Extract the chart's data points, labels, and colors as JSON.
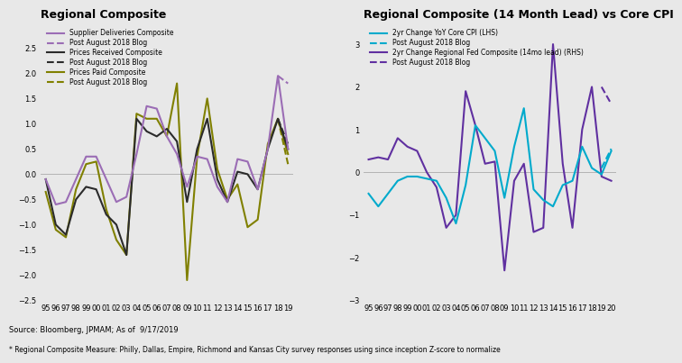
{
  "title_left": "Regional Composite",
  "title_right": "Regional Composite (14 Month Lead) vs Core CPI",
  "source_text": "Source: Bloomberg, JPMAM; As of  9/17/2019",
  "footnote_text": "* Regional Composite Measure: Philly, Dallas, Empire, Richmond and Kansas City survey responses using since inception Z-score to normalize",
  "bg_color": "#e8e8e8",
  "years_left": [
    1995,
    1996,
    1997,
    1998,
    1999,
    2000,
    2001,
    2002,
    2003,
    2004,
    2005,
    2006,
    2007,
    2008,
    2009,
    2010,
    2011,
    2012,
    2013,
    2014,
    2015,
    2016,
    2017,
    2018,
    2019
  ],
  "years_right": [
    1995,
    1996,
    1997,
    1998,
    1999,
    2000,
    2001,
    2002,
    2003,
    2004,
    2005,
    2006,
    2007,
    2008,
    2009,
    2010,
    2011,
    2012,
    2013,
    2014,
    2015,
    2016,
    2017,
    2018,
    2019,
    2020
  ],
  "supplier_deliveries": [
    -0.1,
    -0.6,
    -0.55,
    -0.1,
    0.35,
    0.35,
    -0.1,
    -0.55,
    -0.45,
    0.4,
    1.35,
    1.3,
    0.75,
    0.4,
    -0.25,
    0.35,
    0.3,
    -0.25,
    -0.55,
    0.3,
    0.25,
    -0.3,
    0.5,
    1.95,
    0.5
  ],
  "supplier_deliveries_dash": [
    null,
    null,
    null,
    null,
    null,
    null,
    null,
    null,
    null,
    null,
    null,
    null,
    null,
    null,
    null,
    null,
    null,
    null,
    null,
    null,
    null,
    null,
    null,
    1.95,
    1.8
  ],
  "prices_received": [
    -0.1,
    -1.0,
    -1.2,
    -0.5,
    -0.25,
    -0.3,
    -0.8,
    -1.0,
    -1.6,
    1.1,
    0.85,
    0.75,
    0.9,
    0.65,
    -0.55,
    0.5,
    1.1,
    -0.1,
    -0.55,
    0.05,
    0.0,
    -0.3,
    0.5,
    1.1,
    0.5
  ],
  "prices_received_dash": [
    null,
    null,
    null,
    null,
    null,
    null,
    null,
    null,
    null,
    null,
    null,
    null,
    null,
    null,
    null,
    null,
    null,
    null,
    null,
    null,
    null,
    null,
    null,
    1.1,
    0.6
  ],
  "prices_paid": [
    -0.35,
    -1.1,
    -1.25,
    -0.3,
    0.2,
    0.25,
    -0.7,
    -1.3,
    -1.6,
    1.2,
    1.1,
    1.1,
    0.75,
    1.8,
    -2.1,
    0.35,
    1.5,
    0.1,
    -0.5,
    -0.2,
    -1.05,
    -0.9,
    0.6,
    1.1,
    0.4
  ],
  "prices_paid_dash": [
    null,
    null,
    null,
    null,
    null,
    null,
    null,
    null,
    null,
    null,
    null,
    null,
    null,
    null,
    null,
    null,
    null,
    null,
    null,
    null,
    null,
    null,
    null,
    1.1,
    0.2
  ],
  "core_cpi": [
    -0.5,
    -0.8,
    -0.5,
    -0.2,
    -0.1,
    -0.1,
    -0.15,
    -0.2,
    -0.6,
    -1.2,
    -0.3,
    1.1,
    0.8,
    0.5,
    -0.6,
    0.6,
    1.5,
    -0.4,
    -0.65,
    -0.8,
    -0.3,
    -0.2,
    0.6,
    0.1,
    -0.05,
    0.5
  ],
  "core_cpi_dash": [
    null,
    null,
    null,
    null,
    null,
    null,
    null,
    null,
    null,
    null,
    null,
    null,
    null,
    null,
    null,
    null,
    null,
    null,
    null,
    null,
    null,
    null,
    null,
    null,
    0.1,
    0.55
  ],
  "regional_composite_lead": [
    0.3,
    0.35,
    0.3,
    0.8,
    0.6,
    0.5,
    0.0,
    -0.35,
    -1.3,
    -1.0,
    1.9,
    1.1,
    0.2,
    0.25,
    -2.3,
    -0.2,
    0.2,
    -1.4,
    -1.3,
    3.0,
    0.2,
    -1.3,
    1.0,
    2.0,
    -0.1,
    -0.2
  ],
  "regional_composite_lead_dash": [
    null,
    null,
    null,
    null,
    null,
    null,
    null,
    null,
    null,
    null,
    null,
    null,
    null,
    null,
    null,
    null,
    null,
    null,
    null,
    null,
    null,
    null,
    null,
    null,
    2.0,
    1.6
  ],
  "left_ylim": [
    -2.5,
    3.0
  ],
  "left_yticks": [
    -2.5,
    -2.0,
    -1.5,
    -1.0,
    -0.5,
    0.0,
    0.5,
    1.0,
    1.5,
    2.0,
    2.5
  ],
  "right_ylim": [
    -3.0,
    3.5
  ],
  "right_yticks": [
    -3,
    -2,
    -1,
    0,
    1,
    2,
    3
  ],
  "color_supplier": "#9b6db5",
  "color_prices_received": "#2b2b2b",
  "color_prices_paid": "#808000",
  "color_core_cpi": "#00aacc",
  "color_regional_lead": "#6030a0"
}
